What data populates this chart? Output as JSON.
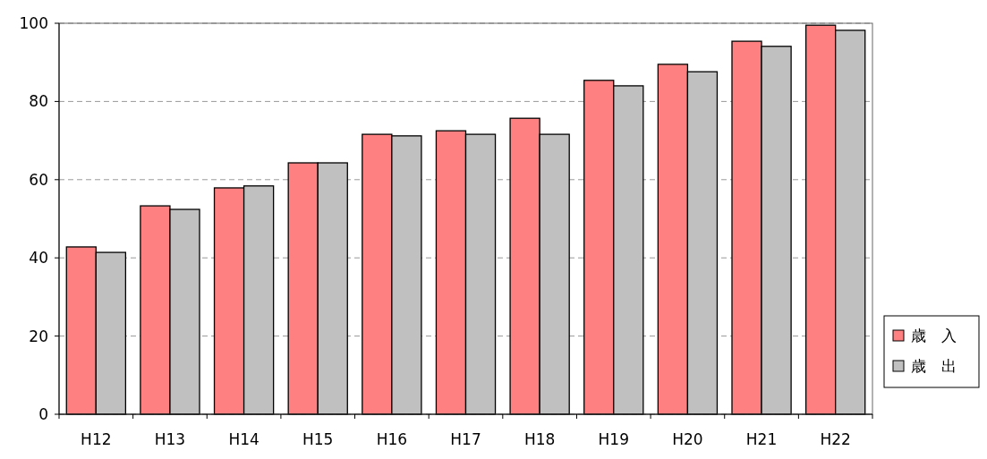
{
  "chart_data": {
    "type": "bar",
    "categories": [
      "H12",
      "H13",
      "H14",
      "H15",
      "H16",
      "H17",
      "H18",
      "H19",
      "H20",
      "H21",
      "H22"
    ],
    "series": [
      {
        "name": "歳　入",
        "color": "#ff8080",
        "values": [
          42.8,
          53.3,
          57.9,
          64.3,
          71.6,
          72.5,
          75.7,
          85.4,
          89.5,
          95.4,
          99.5
        ]
      },
      {
        "name": "歳　出",
        "color": "#c0c0c0",
        "values": [
          41.4,
          52.4,
          58.4,
          64.3,
          71.2,
          71.6,
          71.6,
          84.0,
          87.6,
          94.1,
          98.2
        ]
      }
    ],
    "ylim": [
      0,
      100
    ],
    "yticks": [
      0,
      20,
      40,
      60,
      80,
      100
    ],
    "grid": "y",
    "legend": "right"
  }
}
